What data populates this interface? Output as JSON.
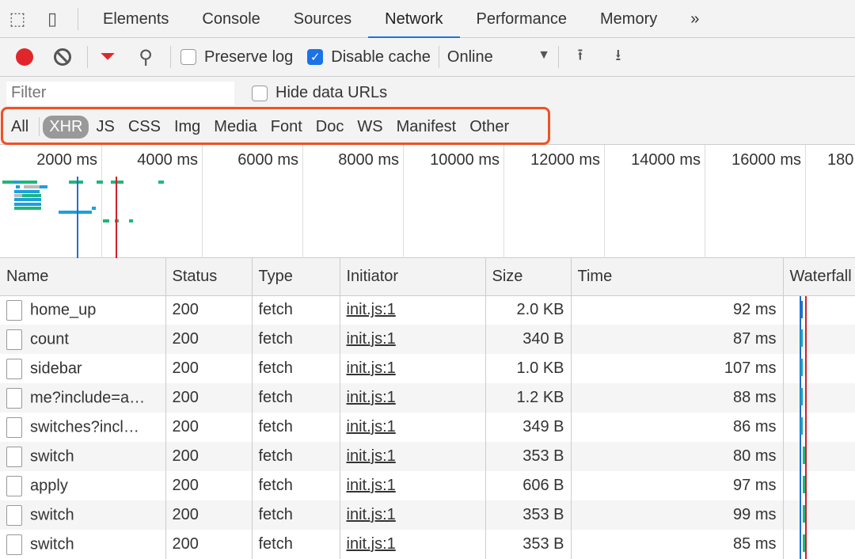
{
  "tabs": [
    {
      "label": "Elements"
    },
    {
      "label": "Console"
    },
    {
      "label": "Sources"
    },
    {
      "label": "Network",
      "active": true
    },
    {
      "label": "Performance"
    },
    {
      "label": "Memory"
    }
  ],
  "toolbar": {
    "preserve_log": "Preserve log",
    "preserve_log_checked": false,
    "disable_cache": "Disable cache",
    "disable_cache_checked": true,
    "throttle": "Online"
  },
  "filter": {
    "placeholder": "Filter",
    "hide_data_urls": "Hide data URLs"
  },
  "types": [
    "All",
    "XHR",
    "JS",
    "CSS",
    "Img",
    "Media",
    "Font",
    "Doc",
    "WS",
    "Manifest",
    "Other"
  ],
  "selected_type": "XHR",
  "overview": {
    "labels": [
      "2000 ms",
      "4000 ms",
      "6000 ms",
      "8000 ms",
      "10000 ms",
      "12000 ms",
      "14000 ms",
      "16000 ms",
      "180"
    ]
  },
  "colors": {
    "accent": "#1a73e8",
    "record": "#e0262a",
    "highlight": "#f25022",
    "dom_content_loaded": "#1f6fd0",
    "load": "#d0202a"
  },
  "table": {
    "columns": [
      "Name",
      "Status",
      "Type",
      "Initiator",
      "Size",
      "Time",
      "Waterfall"
    ],
    "rows": [
      {
        "name": "home_up",
        "status": "200",
        "type": "fetch",
        "initiator": "init.js:1",
        "size": "2.0 KB",
        "time": "92 ms"
      },
      {
        "name": "count",
        "status": "200",
        "type": "fetch",
        "initiator": "init.js:1",
        "size": "340 B",
        "time": "87 ms"
      },
      {
        "name": "sidebar",
        "status": "200",
        "type": "fetch",
        "initiator": "init.js:1",
        "size": "1.0 KB",
        "time": "107 ms"
      },
      {
        "name": "me?include=a…",
        "status": "200",
        "type": "fetch",
        "initiator": "init.js:1",
        "size": "1.2 KB",
        "time": "88 ms"
      },
      {
        "name": "switches?incl…",
        "status": "200",
        "type": "fetch",
        "initiator": "init.js:1",
        "size": "349 B",
        "time": "86 ms"
      },
      {
        "name": "switch",
        "status": "200",
        "type": "fetch",
        "initiator": "init.js:1",
        "size": "353 B",
        "time": "80 ms"
      },
      {
        "name": "apply",
        "status": "200",
        "type": "fetch",
        "initiator": "init.js:1",
        "size": "606 B",
        "time": "97 ms"
      },
      {
        "name": "switch",
        "status": "200",
        "type": "fetch",
        "initiator": "init.js:1",
        "size": "353 B",
        "time": "99 ms"
      },
      {
        "name": "switch",
        "status": "200",
        "type": "fetch",
        "initiator": "init.js:1",
        "size": "353 B",
        "time": "85 ms"
      }
    ]
  }
}
